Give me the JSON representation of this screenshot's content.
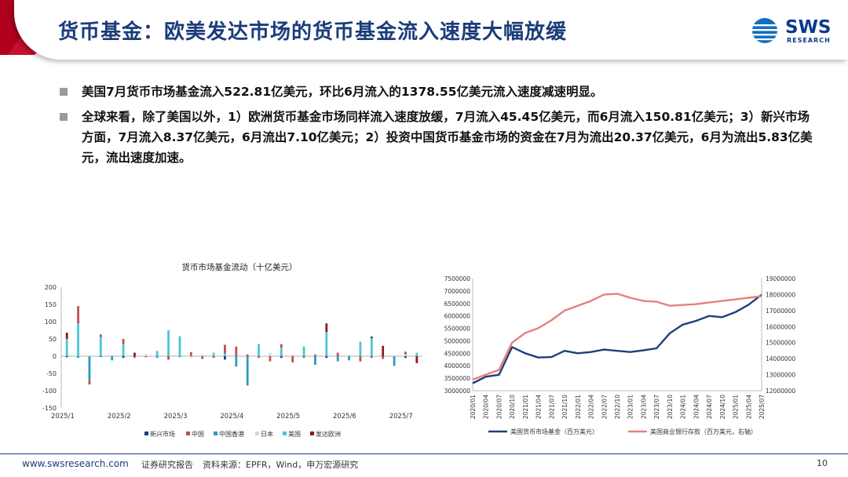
{
  "header": {
    "title": "货币基金：欧美发达市场的货币基金流入速度大幅放缓",
    "logo_text": "SWS",
    "logo_sub": "RESEARCH"
  },
  "bullets": [
    "美国7月货币市场基金流入522.81亿美元，环比6月流入的1378.55亿美元流入速度减速明显。",
    "全球来看，除了美国以外，1）欧洲货币基金市场同样流入速度放缓，7月流入45.45亿美元，而6月流入150.81亿美元；3）新兴市场方面，7月流入8.37亿美元，6月流出7.10亿美元；2）投资中国货币基金市场的资金在7月为流出20.37亿美元，6月为流出5.83亿美元，流出速度加速。"
  ],
  "footer": {
    "url": "www.swsresearch.com",
    "report": "证券研究报告",
    "source": "资料来源：EPFR，Wind，申万宏源研究",
    "page": "10"
  },
  "chart_data": [
    {
      "type": "bar",
      "title": "货币市场基金流动（十亿美元）",
      "ylim": [
        -150,
        200
      ],
      "yticks": [
        -150,
        -100,
        -50,
        0,
        50,
        100,
        150,
        200
      ],
      "xticks": [
        "2025/1",
        "2025/2",
        "2025/3",
        "2025/4",
        "2025/5",
        "2025/6",
        "2025/7"
      ],
      "legend": [
        "新兴市场",
        "中国",
        "中国香港",
        "日本",
        "美国",
        "发达欧洲"
      ],
      "colors": {
        "新兴市场": "#1f3f7a",
        "中国": "#c0504d",
        "中国香港": "#2e9bbf",
        "日本": "#c9d9ea",
        "美国": "#4bc6d6",
        "发达欧洲": "#8b1a1a"
      },
      "stacks": [
        {
          "up": [
            [
              "美国",
              50
            ],
            [
              "发达欧洲",
              18
            ]
          ],
          "down": [
            [
              "新兴市场",
              -3
            ]
          ]
        },
        {
          "up": [
            [
              "美国",
              95
            ],
            [
              "中国",
              50
            ]
          ],
          "down": [
            [
              "中国香港",
              -5
            ]
          ]
        },
        {
          "up": [],
          "down": [
            [
              "中国香港",
              -70
            ],
            [
              "中国",
              -12
            ]
          ]
        },
        {
          "up": [
            [
              "美国",
              55
            ],
            [
              "中国",
              8
            ]
          ],
          "down": [
            [
              "新兴市场",
              -2
            ]
          ]
        },
        {
          "up": [],
          "down": [
            [
              "中国香港",
              -12
            ]
          ]
        },
        {
          "up": [
            [
              "美国",
              35
            ],
            [
              "中国",
              15
            ]
          ],
          "down": [
            [
              "新兴市场",
              -5
            ]
          ]
        },
        {
          "up": [
            [
              "发达欧洲",
              10
            ]
          ],
          "down": [
            [
              "中国",
              -5
            ]
          ]
        },
        {
          "up": [
            [
              "日本",
              6
            ]
          ],
          "down": [
            [
              "中国",
              -3
            ]
          ]
        },
        {
          "up": [
            [
              "美国",
              15
            ]
          ],
          "down": [
            [
              "中国香港",
              -5
            ]
          ]
        },
        {
          "up": [
            [
              "美国",
              75
            ]
          ],
          "down": [
            [
              "中国",
              -10
            ]
          ]
        },
        {
          "up": [
            [
              "美国",
              58
            ]
          ],
          "down": [
            [
              "中国香港",
              -3
            ]
          ]
        },
        {
          "up": [
            [
              "中国",
              12
            ]
          ],
          "down": [
            [
              "日本",
              -5
            ]
          ]
        },
        {
          "up": [
            [
              "日本",
              5
            ]
          ],
          "down": [
            [
              "中国",
              -8
            ]
          ]
        },
        {
          "up": [
            [
              "美国",
              10
            ]
          ],
          "down": [
            [
              "中国",
              -5
            ]
          ]
        },
        {
          "up": [
            [
              "美国",
              8
            ],
            [
              "中国",
              25
            ]
          ],
          "down": [
            [
              "新兴市场",
              -10
            ]
          ]
        },
        {
          "up": [
            [
              "中国",
              28
            ]
          ],
          "down": [
            [
              "中国香港",
              -30
            ]
          ]
        },
        {
          "up": [
            [
              "中国",
              5
            ]
          ],
          "down": [
            [
              "中国香港",
              -85
            ]
          ]
        },
        {
          "up": [
            [
              "美国",
              35
            ]
          ],
          "down": [
            [
              "中国",
              -5
            ]
          ]
        },
        {
          "up": [
            [
              "日本",
              10
            ]
          ],
          "down": [
            [
              "中国",
              -15
            ]
          ]
        },
        {
          "up": [
            [
              "美国",
              25
            ],
            [
              "中国",
              10
            ]
          ],
          "down": [
            [
              "新兴市场",
              -5
            ]
          ]
        },
        {
          "up": [
            [
              "日本",
              5
            ]
          ],
          "down": [
            [
              "中国",
              -18
            ]
          ]
        },
        {
          "up": [
            [
              "美国",
              28
            ]
          ],
          "down": [
            [
              "中国",
              -5
            ]
          ]
        },
        {
          "up": [
            [
              "中国",
              5
            ]
          ],
          "down": [
            [
              "中国香港",
              -25
            ]
          ]
        },
        {
          "up": [
            [
              "美国",
              70
            ],
            [
              "发达欧洲",
              25
            ]
          ],
          "down": [
            [
              "新兴市场",
              -5
            ]
          ]
        },
        {
          "up": [
            [
              "中国",
              10
            ]
          ],
          "down": [
            [
              "中国香港",
              -15
            ]
          ]
        },
        {
          "up": [
            [
              "日本",
              5
            ]
          ],
          "down": [
            [
              "中国香港",
              -12
            ]
          ]
        },
        {
          "up": [
            [
              "美国",
              42
            ]
          ],
          "down": [
            [
              "中国",
              -15
            ]
          ]
        },
        {
          "up": [
            [
              "美国",
              52
            ],
            [
              "新兴市场",
              5
            ]
          ],
          "down": [
            [
              "中国",
              -5
            ]
          ]
        },
        {
          "up": [
            [
              "发达欧洲",
              30
            ]
          ],
          "down": [
            [
              "中国",
              -8
            ]
          ]
        },
        {
          "up": [],
          "down": [
            [
              "中国香港",
              -28
            ]
          ]
        },
        {
          "up": [
            [
              "日本",
              5
            ],
            [
              "中国",
              8
            ]
          ],
          "down": [
            [
              "新兴市场",
              -5
            ]
          ]
        },
        {
          "up": [
            [
              "美国",
              10
            ]
          ],
          "down": [
            [
              "发达欧洲",
              -20
            ]
          ]
        }
      ]
    },
    {
      "type": "line",
      "x": [
        "2020/01",
        "2020/04",
        "2020/07",
        "2020/10",
        "2021/01",
        "2021/04",
        "2021/07",
        "2021/10",
        "2022/01",
        "2022/04",
        "2022/07",
        "2022/10",
        "2023/01",
        "2023/04",
        "2023/07",
        "2023/10",
        "2024/01",
        "2024/04",
        "2024/07",
        "2024/10",
        "2025/01",
        "2025/04",
        "2025/07"
      ],
      "y_left_ticks": [
        3000000,
        3500000,
        4000000,
        4500000,
        5000000,
        5500000,
        6000000,
        6500000,
        7000000,
        7500000
      ],
      "y_right_ticks": [
        12000000,
        13000000,
        14000000,
        15000000,
        16000000,
        17000000,
        18000000,
        19000000
      ],
      "ylim_left": [
        3000000,
        7500000
      ],
      "ylim_right": [
        12000000,
        19000000
      ],
      "series": [
        {
          "name": "美国货币市场基金（百万美元）",
          "axis": "left",
          "color": "#1f3f7a",
          "values": [
            3300000,
            3560000,
            3640000,
            4750000,
            4500000,
            4330000,
            4350000,
            4600000,
            4500000,
            4550000,
            4650000,
            4600000,
            4550000,
            4620000,
            4700000,
            5300000,
            5650000,
            5800000,
            6000000,
            5950000,
            6150000,
            6450000,
            6850000
          ]
        },
        {
          "name": "美国商业银行存款（百万美元，右轴）",
          "axis": "right",
          "color": "#e58080",
          "values": [
            12700000,
            13000000,
            13300000,
            15000000,
            15600000,
            15900000,
            16400000,
            17000000,
            17300000,
            17600000,
            18000000,
            18050000,
            17800000,
            17600000,
            17550000,
            17300000,
            17350000,
            17400000,
            17500000,
            17600000,
            17700000,
            17800000,
            17900000
          ]
        }
      ]
    }
  ]
}
